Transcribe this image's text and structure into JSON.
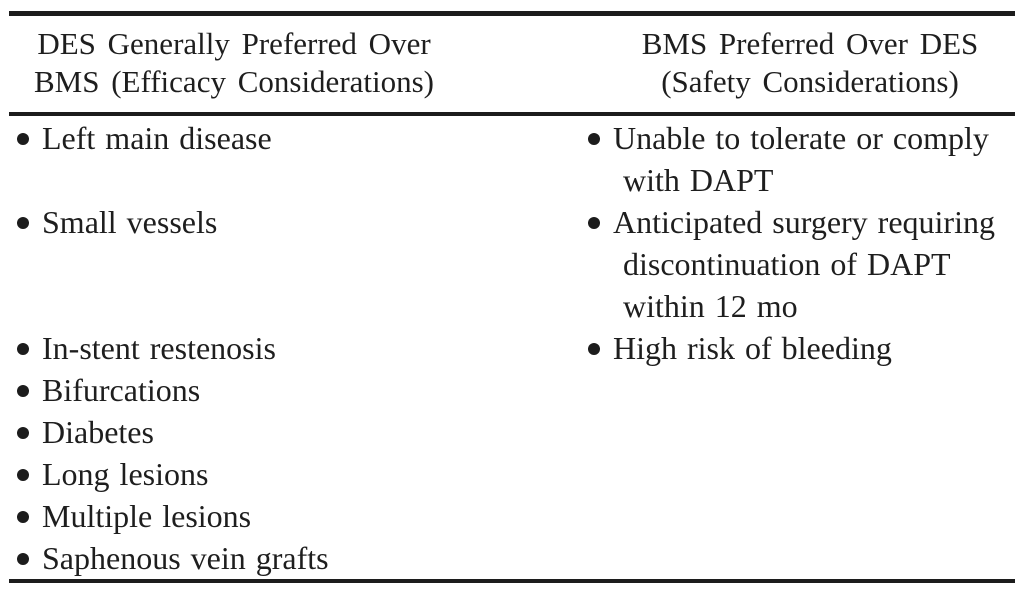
{
  "page": {
    "background_color": "#ffffff",
    "text_color": "#1e1e1e",
    "rule_color": "#1c1c1c",
    "bullet_icon": "filled-circle"
  },
  "table": {
    "columns": [
      {
        "header": "DES Generally Preferred Over\nBMS (Efficacy Considerations)"
      },
      {
        "header": "BMS Preferred Over DES\n(Safety Considerations)"
      }
    ],
    "rows": [
      {
        "left": "Left main disease",
        "right": "Unable to tolerate or comply\nwith DAPT"
      },
      {
        "left": "Small vessels",
        "right": "Anticipated surgery requiring\ndiscontinuation of DAPT\nwithin 12 mo"
      },
      {
        "left": "In-stent restenosis",
        "right": "High risk of bleeding"
      },
      {
        "left": "Bifurcations",
        "right": ""
      },
      {
        "left": "Diabetes",
        "right": ""
      },
      {
        "left": "Long lesions",
        "right": ""
      },
      {
        "left": "Multiple lesions",
        "right": ""
      },
      {
        "left": "Saphenous vein grafts",
        "right": ""
      }
    ]
  }
}
